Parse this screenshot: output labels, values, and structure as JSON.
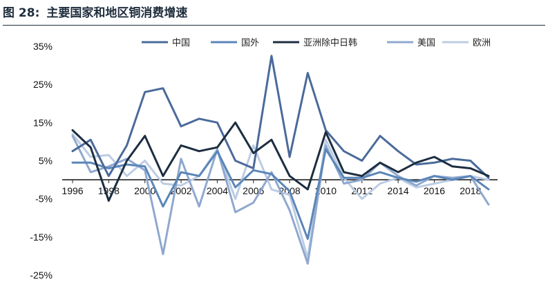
{
  "figure": {
    "label": "图 28:",
    "title": "主要国家和地区铜消费增速"
  },
  "chart_data": {
    "type": "line",
    "title": "主要国家和地区铜消费增速",
    "xlabel": "",
    "ylabel": "",
    "x": [
      1996,
      1997,
      1998,
      1999,
      2000,
      2001,
      2002,
      2003,
      2004,
      2005,
      2006,
      2007,
      2008,
      2009,
      2010,
      2011,
      2012,
      2013,
      2014,
      2015,
      2016,
      2017,
      2018,
      2019
    ],
    "x_tick_labels": [
      "1996",
      "1998",
      "2000",
      "2002",
      "2004",
      "2006",
      "2008",
      "2010",
      "2012",
      "2014",
      "2016",
      "2018"
    ],
    "ylim": [
      -25,
      35
    ],
    "y_tick_values": [
      35,
      25,
      15,
      5,
      -5,
      -15,
      -25
    ],
    "y_tick_labels": [
      "35%",
      "25%",
      "15%",
      "5%",
      "-5%",
      "-15%",
      "-25%"
    ],
    "y_unit": "%",
    "legend_position": "top",
    "grid": false,
    "series": [
      {
        "name": "中国",
        "color": "#4a6a9a",
        "values": [
          7.5,
          10.5,
          1.0,
          9.0,
          23.0,
          24.0,
          14.0,
          16.0,
          15.0,
          5.0,
          3.0,
          32.5,
          6.0,
          28.0,
          13.0,
          7.5,
          5.0,
          11.5,
          7.5,
          4.0,
          4.5,
          5.5,
          5.0,
          0.5
        ]
      },
      {
        "name": "国外",
        "color": "#5a86b8",
        "values": [
          4.5,
          4.5,
          3.0,
          4.0,
          3.5,
          -7.0,
          2.0,
          1.0,
          7.5,
          -2.0,
          2.5,
          1.5,
          -3.0,
          -15.5,
          8.0,
          0.5,
          0.5,
          2.0,
          0.5,
          -0.5,
          1.0,
          0.0,
          1.0,
          -2.5
        ]
      },
      {
        "name": "亚洲除中日韩",
        "color": "#1c2d40",
        "values": [
          13.0,
          8.5,
          -5.5,
          5.0,
          11.5,
          1.0,
          9.0,
          7.5,
          8.5,
          15.0,
          7.0,
          10.5,
          1.0,
          -2.5,
          12.5,
          2.0,
          1.0,
          4.5,
          2.0,
          4.5,
          6.0,
          3.5,
          3.0,
          1.0
        ]
      },
      {
        "name": "美国",
        "color": "#8fa8cf",
        "values": [
          11.5,
          2.0,
          3.5,
          5.5,
          2.5,
          -19.5,
          5.5,
          -7.0,
          8.0,
          -8.5,
          -6.0,
          2.0,
          -8.0,
          -22.0,
          9.0,
          -1.0,
          0.0,
          4.5,
          1.0,
          -1.5,
          1.0,
          0.5,
          1.0,
          -6.5
        ]
      },
      {
        "name": "欧洲",
        "color": "#bccce3",
        "values": [
          12.0,
          6.0,
          6.5,
          1.0,
          5.0,
          -1.0,
          -1.5,
          1.0,
          8.0,
          -5.0,
          9.0,
          -2.5,
          -4.0,
          -20.5,
          10.5,
          0.5,
          -5.0,
          -1.0,
          0.5,
          -2.0,
          -1.0,
          0.0,
          1.0,
          0.0
        ]
      }
    ]
  }
}
